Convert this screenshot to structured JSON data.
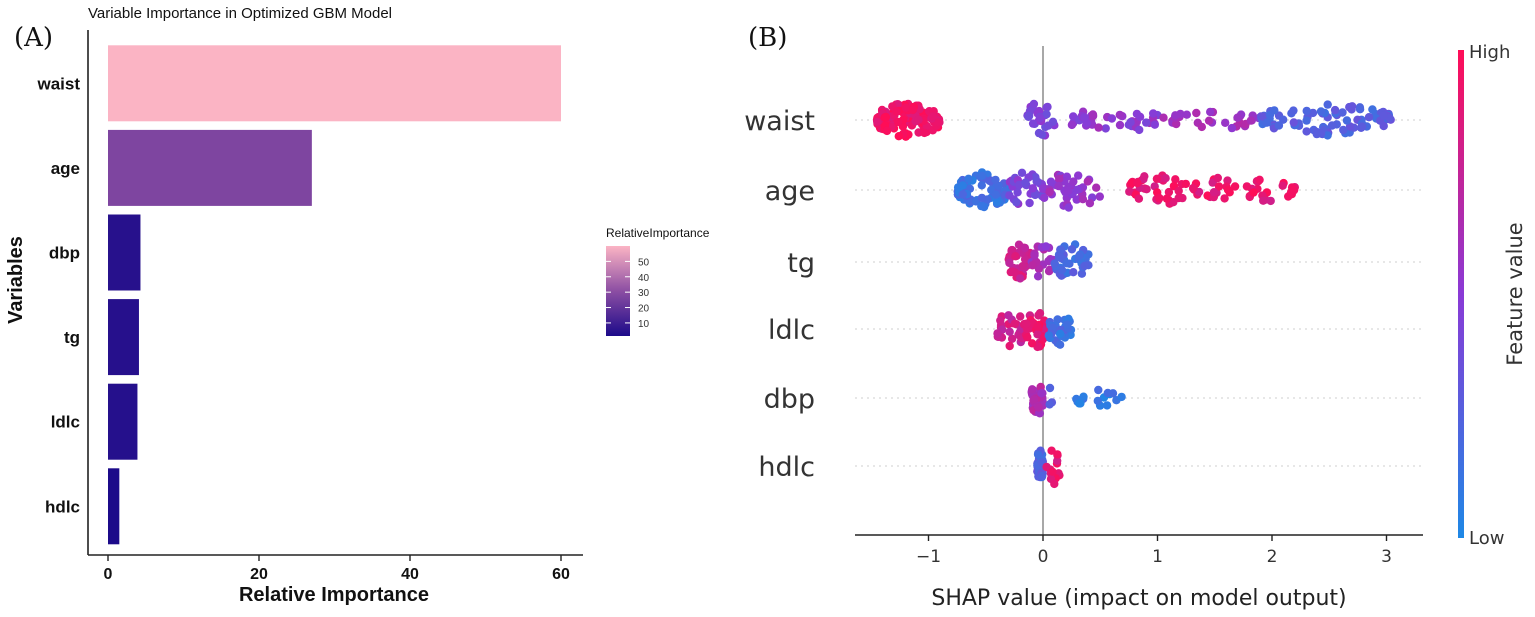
{
  "chart_data": [
    {
      "panel_tag": "(A)",
      "type": "bar",
      "orientation": "horizontal",
      "title": "Variable Importance in Optimized GBM Model",
      "xlabel": "Relative Importance",
      "ylabel": "Variables",
      "categories": [
        "waist",
        "age",
        "dbp",
        "tg",
        "ldlc",
        "hdlc"
      ],
      "values": [
        60,
        27,
        4.3,
        4.1,
        3.9,
        1.5
      ],
      "xlim": [
        0,
        62
      ],
      "xticks": [
        0,
        20,
        40,
        60
      ],
      "legend": {
        "title": "RelativeImportance",
        "ticks": [
          10,
          20,
          30,
          40,
          50
        ],
        "color_low": "#1c0a8a",
        "color_mid": "#8c4ea3",
        "color_high": "#fbb4c4",
        "range": [
          1.5,
          60
        ],
        "placement": "right"
      }
    },
    {
      "panel_tag": "(B)",
      "type": "scatter",
      "style": "beeswarm",
      "xlabel": "SHAP value (impact on model output)",
      "categories": [
        "waist",
        "age",
        "tg",
        "ldlc",
        "dbp",
        "hdlc"
      ],
      "xlim": [
        -1.6,
        3.3
      ],
      "xticks": [
        -1,
        0,
        1,
        2,
        3
      ],
      "colorbar": {
        "label": "Feature value",
        "high_label": "High",
        "low_label": "Low",
        "color_high": "#ff0d57",
        "color_low": "#1e88e5"
      },
      "clusters": {
        "waist": [
          [
            -1.45,
            -0.9,
            0.95,
            110
          ],
          [
            -0.15,
            0.1,
            0.45,
            28
          ],
          [
            0.25,
            1.0,
            0.52,
            40
          ],
          [
            1.05,
            1.9,
            0.62,
            30
          ],
          [
            1.9,
            3.05,
            0.25,
            85
          ]
        ],
        "age": [
          [
            -0.75,
            -0.3,
            0.15,
            70
          ],
          [
            -0.3,
            0.0,
            0.45,
            30
          ],
          [
            0.0,
            0.5,
            0.55,
            45
          ],
          [
            0.75,
            1.25,
            0.9,
            40
          ],
          [
            1.3,
            1.7,
            0.9,
            22
          ],
          [
            1.75,
            2.2,
            0.9,
            22
          ]
        ],
        "tg": [
          [
            -0.3,
            -0.1,
            0.8,
            40
          ],
          [
            -0.1,
            0.1,
            0.6,
            20
          ],
          [
            0.1,
            0.4,
            0.2,
            35
          ]
        ],
        "ldlc": [
          [
            -0.4,
            -0.15,
            0.8,
            30
          ],
          [
            -0.15,
            0.05,
            0.9,
            35
          ],
          [
            0.05,
            0.25,
            0.15,
            30
          ]
        ],
        "dbp": [
          [
            -0.1,
            0.0,
            0.65,
            45
          ],
          [
            0.05,
            0.1,
            0.25,
            3
          ],
          [
            0.25,
            0.7,
            0.1,
            16
          ]
        ],
        "hdlc": [
          [
            -0.05,
            0.0,
            0.25,
            40
          ],
          [
            0.03,
            0.16,
            0.9,
            14
          ]
        ]
      }
    }
  ]
}
